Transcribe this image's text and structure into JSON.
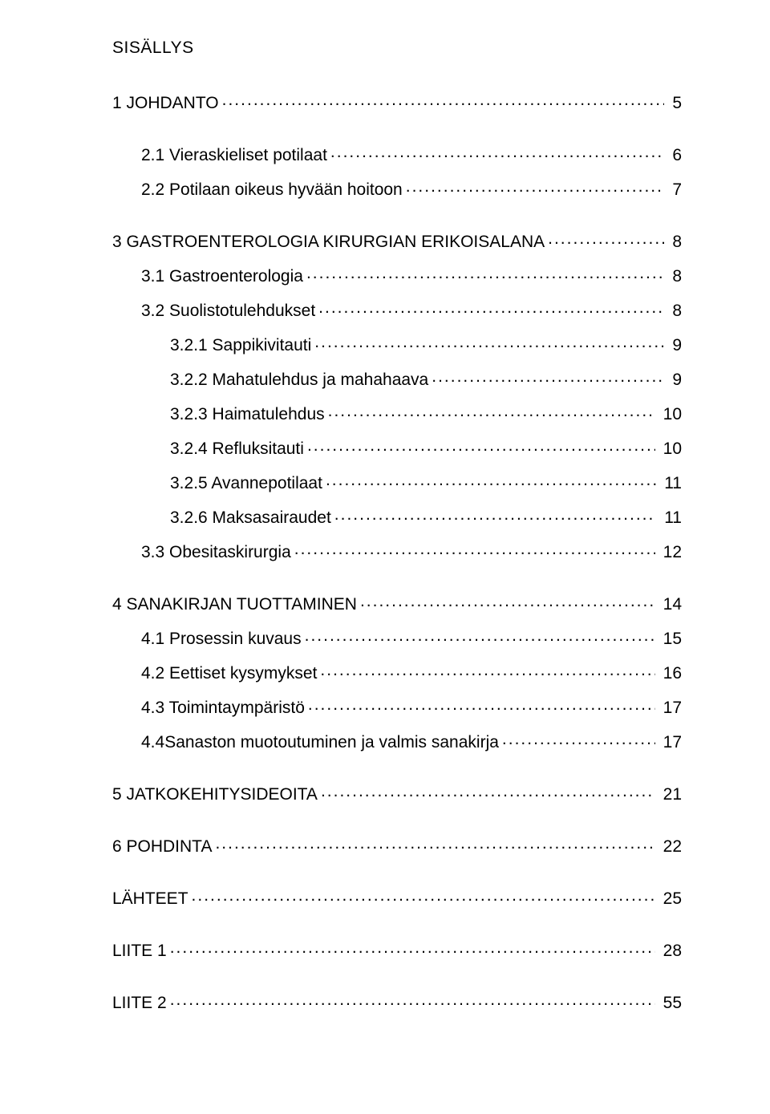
{
  "title": "SISÄLLYS",
  "font": {
    "family": "Arial",
    "title_size_pt": 21,
    "row_size_pt": 21,
    "color": "#000000"
  },
  "background_color": "#ffffff",
  "toc": [
    {
      "label": "1 JOHDANTO",
      "page": "5",
      "level": 1,
      "gap": "lg"
    },
    {
      "label": "2.1 Vieraskieliset potilaat",
      "page": "6",
      "level": 2,
      "gap": "md"
    },
    {
      "label": "2.2 Potilaan oikeus hyvään hoitoon",
      "page": "7",
      "level": 2,
      "gap": "lg"
    },
    {
      "label": "3 GASTROENTEROLOGIA KIRURGIAN ERIKOISALANA",
      "page": "8",
      "level": 1,
      "gap": "md"
    },
    {
      "label": "3.1 Gastroenterologia",
      "page": "8",
      "level": 2,
      "gap": "md"
    },
    {
      "label": "3.2 Suolistotulehdukset",
      "page": "8",
      "level": 2,
      "gap": "md"
    },
    {
      "label": "3.2.1 Sappikivitauti",
      "page": "9",
      "level": 3,
      "gap": "md"
    },
    {
      "label": "3.2.2 Mahatulehdus ja mahahaava",
      "page": "9",
      "level": 3,
      "gap": "md"
    },
    {
      "label": "3.2.3 Haimatulehdus",
      "page": "10",
      "level": 3,
      "gap": "md"
    },
    {
      "label": "3.2.4 Refluksitauti",
      "page": "10",
      "level": 3,
      "gap": "md"
    },
    {
      "label": "3.2.5 Avannepotilaat",
      "page": "11",
      "level": 3,
      "gap": "md"
    },
    {
      "label": "3.2.6 Maksasairaudet",
      "page": "11",
      "level": 3,
      "gap": "md"
    },
    {
      "label": "3.3 Obesitaskirurgia",
      "page": "12",
      "level": 2,
      "gap": "lg"
    },
    {
      "label": "4 SANAKIRJAN TUOTTAMINEN",
      "page": "14",
      "level": 1,
      "gap": "md"
    },
    {
      "label": "4.1 Prosessin kuvaus",
      "page": "15",
      "level": 2,
      "gap": "md"
    },
    {
      "label": "4.2 Eettiset kysymykset",
      "page": "16",
      "level": 2,
      "gap": "md"
    },
    {
      "label": "4.3 Toimintaympäristö",
      "page": "17",
      "level": 2,
      "gap": "md"
    },
    {
      "label": "4.4Sanaston muotoutuminen ja valmis sanakirja",
      "page": "17",
      "level": 2,
      "gap": "lg"
    },
    {
      "label": "5 JATKOKEHITYSIDEOITA",
      "page": "21",
      "level": 1,
      "gap": "lg"
    },
    {
      "label": "6 POHDINTA",
      "page": "22",
      "level": 1,
      "gap": "lg"
    },
    {
      "label": "LÄHTEET",
      "page": "25",
      "level": 1,
      "gap": "lg"
    },
    {
      "label": "LIITE 1",
      "page": "28",
      "level": 1,
      "gap": "lg"
    },
    {
      "label": "LIITE 2",
      "page": "55",
      "level": 1,
      "gap": "lg"
    }
  ]
}
